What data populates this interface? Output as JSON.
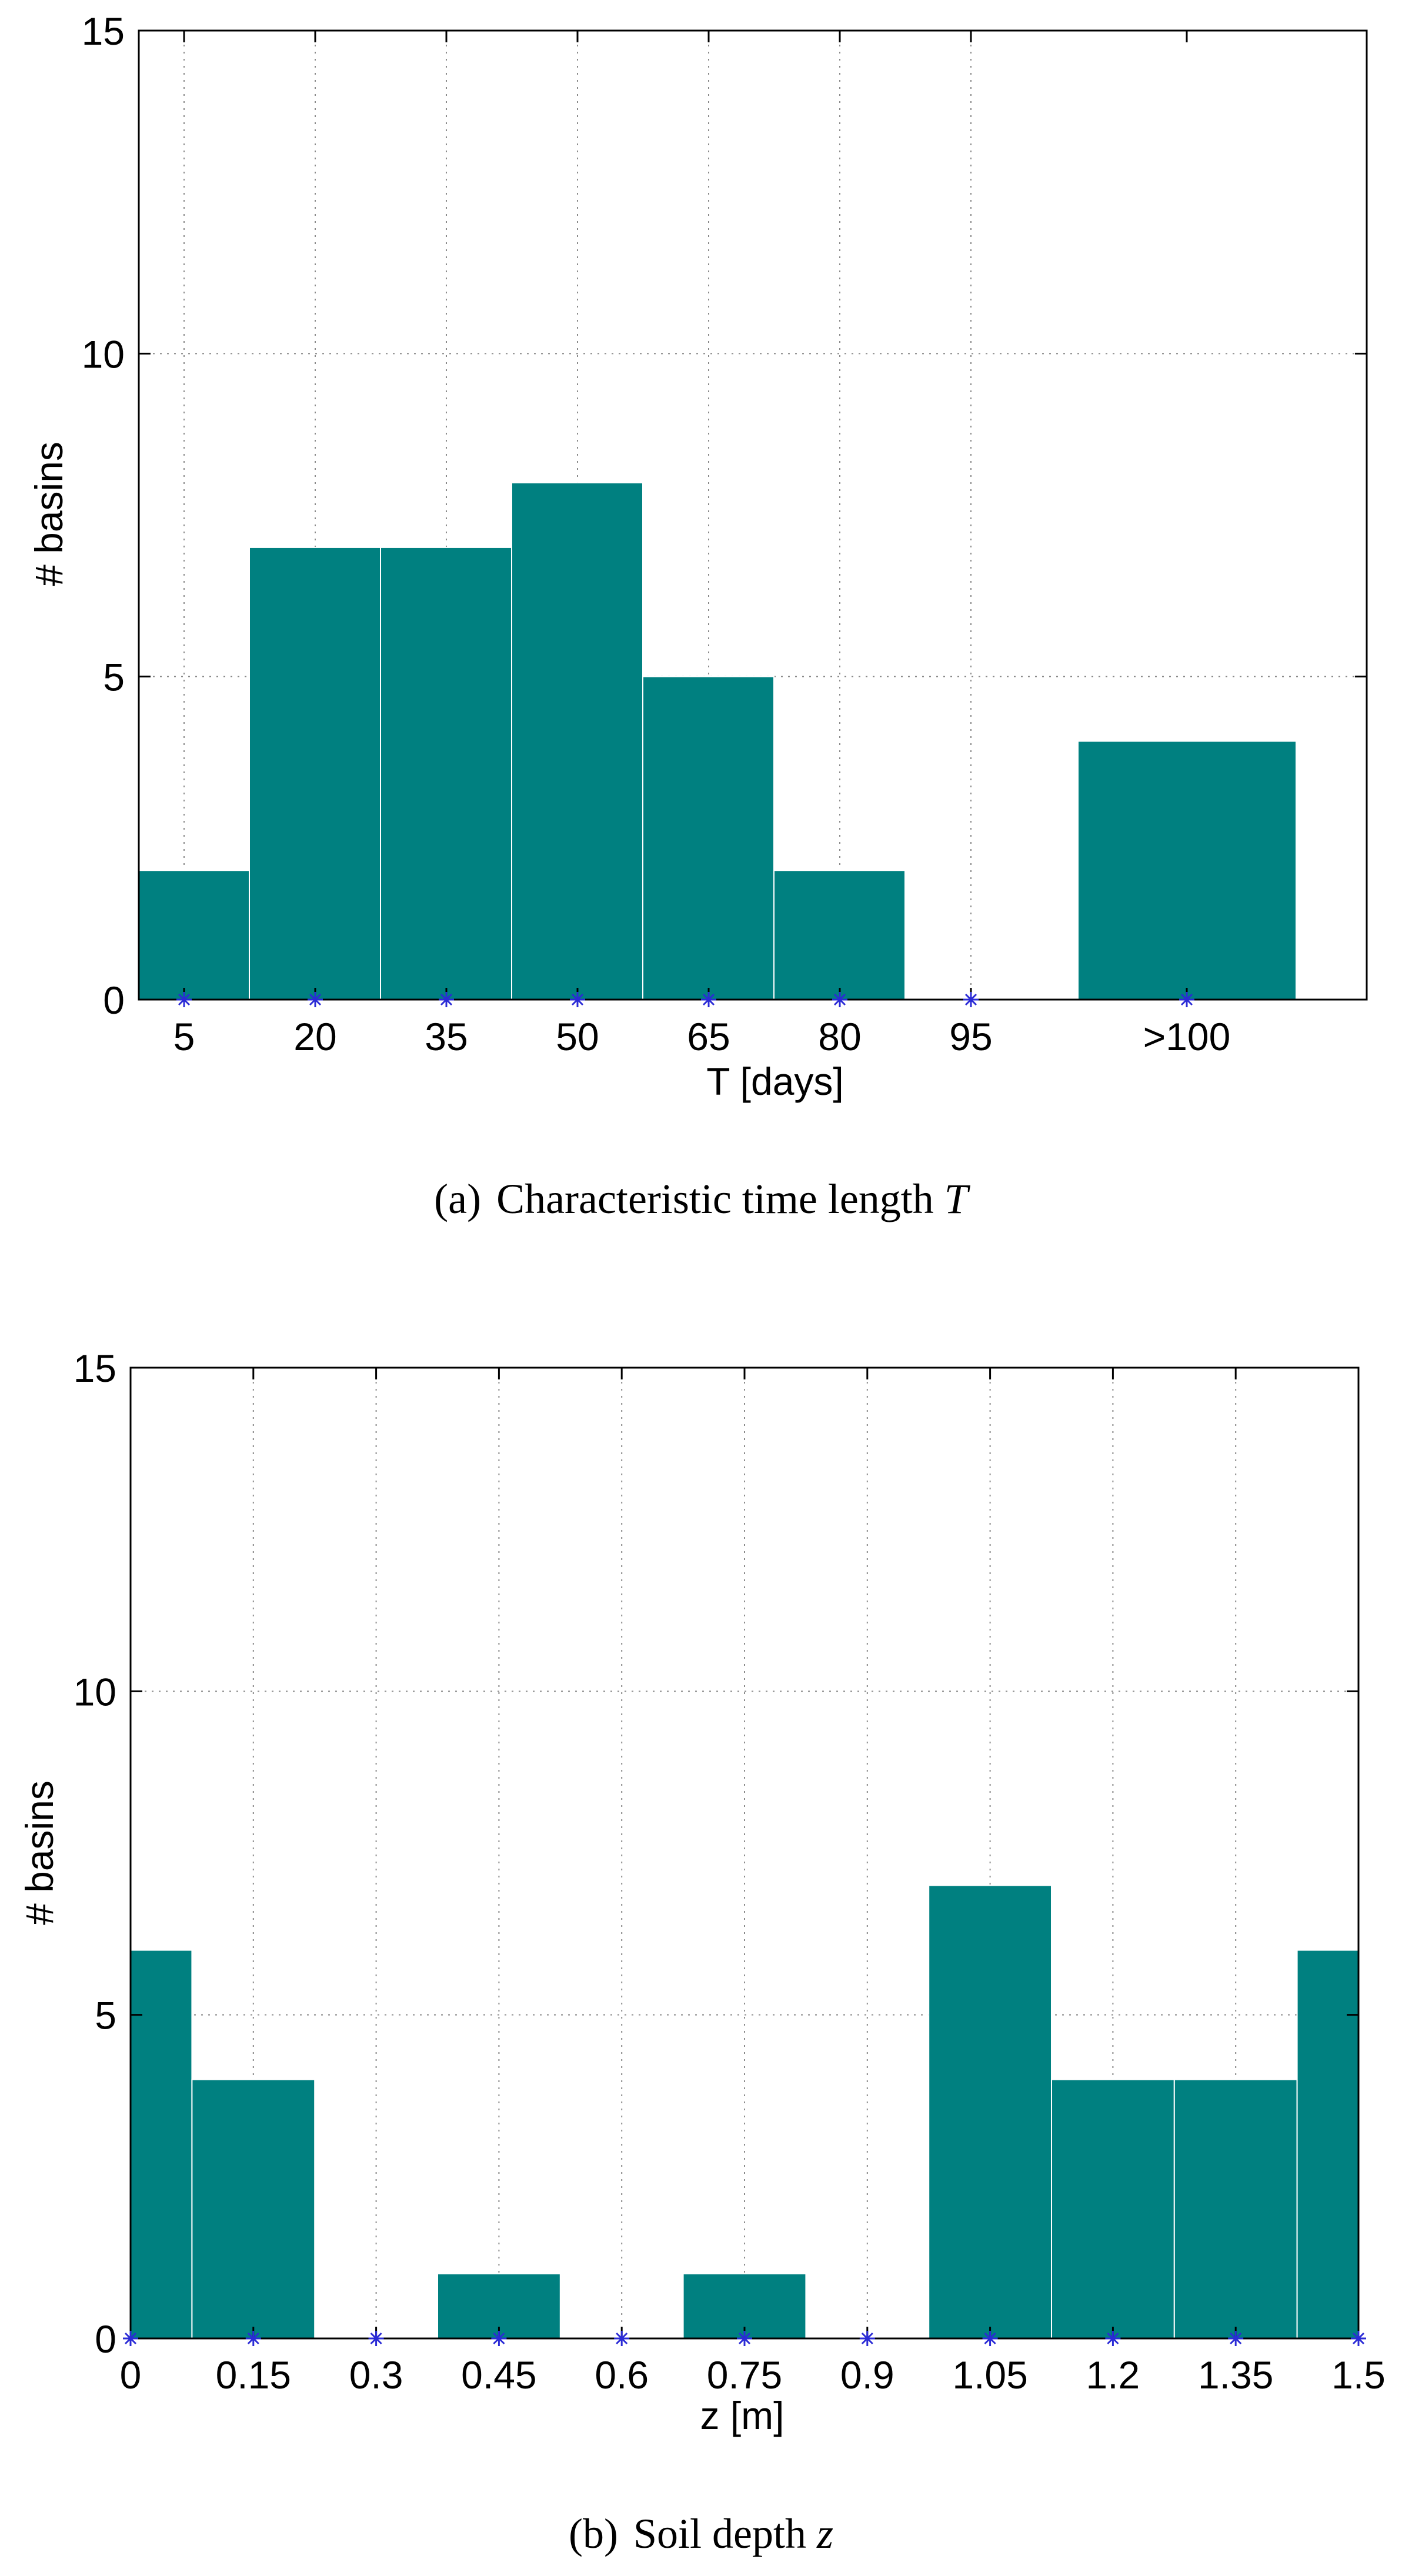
{
  "chart_data": [
    {
      "type": "bar",
      "title": "",
      "caption_label": "(a)",
      "caption_text": "Characteristic time length",
      "caption_symbol": "T",
      "xlabel": "T [days]",
      "ylabel": "# basins",
      "ylim": [
        0,
        15
      ],
      "yticks": [
        "0",
        "5",
        "10",
        "15"
      ],
      "categories": [
        "5",
        "20",
        "35",
        "50",
        "65",
        "80",
        "95",
        ">100"
      ],
      "values": [
        2,
        7,
        7,
        8,
        5,
        2,
        0,
        4
      ],
      "grid": true,
      "bar_color": "#008080",
      "marker_color": "#2b2bd6"
    },
    {
      "type": "bar",
      "title": "",
      "caption_label": "(b)",
      "caption_text": "Soil depth",
      "caption_symbol": "z",
      "xlabel": "z [m]",
      "ylabel": "# basins",
      "ylim": [
        0,
        15
      ],
      "xlim": [
        0,
        1.5
      ],
      "yticks": [
        "0",
        "5",
        "10",
        "15"
      ],
      "categories": [
        "0",
        "0.15",
        "0.3",
        "0.45",
        "0.6",
        "0.75",
        "0.9",
        "1.05",
        "1.2",
        "1.35",
        "1.5"
      ],
      "values": [
        6,
        4,
        0,
        1,
        0,
        1,
        0,
        7,
        4,
        4,
        6
      ],
      "grid": true,
      "bar_color": "#008080",
      "marker_color": "#2b2bd6"
    }
  ]
}
